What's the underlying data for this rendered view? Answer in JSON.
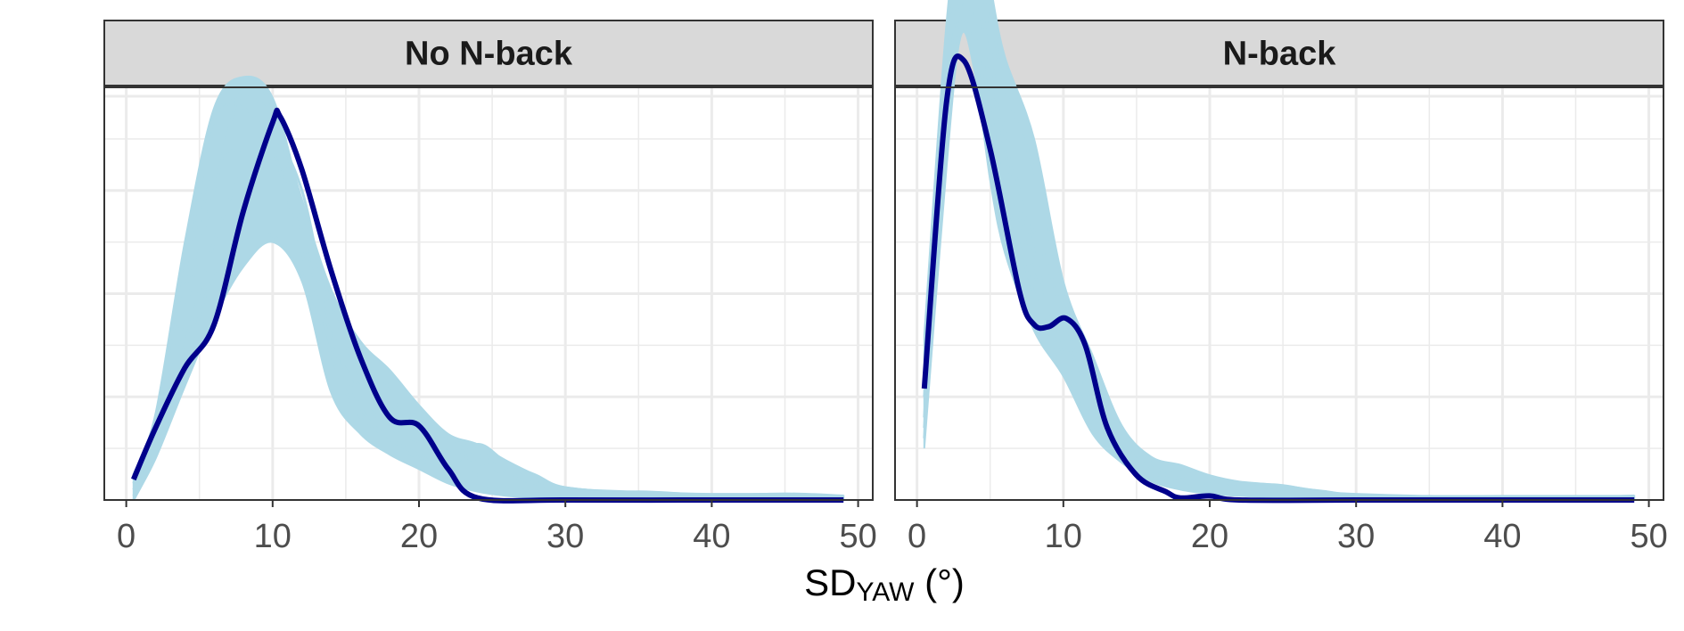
{
  "chart_data": {
    "type": "line",
    "subtype": "density-overlay",
    "xlabel_main": "SD",
    "xlabel_sub": "YAW",
    "xlabel_unit": " (°)",
    "xlim": [
      -1.5,
      51
    ],
    "ylim": [
      0,
      0.2
    ],
    "xticks": [
      0,
      10,
      20,
      30,
      40,
      50
    ],
    "y_axis_labels_shown": false,
    "grid": true,
    "colors": {
      "replicates": "#add8e6",
      "observed": "#00008b",
      "strip_fill": "#d9d9d9",
      "grid": "#ebebeb"
    },
    "panels": [
      {
        "title": "No N-back",
        "observed": {
          "name": "",
          "x": [
            0.5,
            2,
            4,
            6,
            8,
            10,
            10.5,
            12,
            14,
            16,
            18,
            20,
            22,
            24,
            30,
            40,
            49
          ],
          "y": [
            0.01,
            0.035,
            0.064,
            0.085,
            0.14,
            0.183,
            0.186,
            0.16,
            0.111,
            0.069,
            0.04,
            0.036,
            0.015,
            0.001,
            0.0,
            0.0,
            0.0
          ]
        },
        "replicates": {
          "name": "",
          "x": [
            0.5,
            2,
            4,
            6,
            8,
            10,
            12,
            14,
            16,
            18,
            20,
            22,
            24,
            26,
            28,
            30,
            35,
            40,
            45,
            49
          ],
          "upper": [
            0.012,
            0.042,
            0.125,
            0.19,
            0.205,
            0.195,
            0.145,
            0.102,
            0.077,
            0.063,
            0.046,
            0.032,
            0.027,
            0.019,
            0.012,
            0.006,
            0.004,
            0.003,
            0.003,
            0.002
          ],
          "lower": [
            0.0,
            0.02,
            0.055,
            0.088,
            0.113,
            0.125,
            0.106,
            0.052,
            0.032,
            0.022,
            0.015,
            0.008,
            0.004,
            0.002,
            0.001,
            0.0,
            0.0,
            0.0,
            0.0,
            0.0
          ],
          "lines": [
            [
              0.012,
              0.04,
              0.11,
              0.18,
              0.195,
              0.185,
              0.145,
              0.095,
              0.06,
              0.045,
              0.035,
              0.025,
              0.018,
              0.012,
              0.008,
              0.005,
              0.002,
              0.001,
              0.001,
              0.0
            ],
            [
              0.0,
              0.022,
              0.065,
              0.11,
              0.125,
              0.128,
              0.11,
              0.075,
              0.055,
              0.048,
              0.04,
              0.03,
              0.024,
              0.015,
              0.01,
              0.006,
              0.003,
              0.002,
              0.002,
              0.001
            ],
            [
              0.005,
              0.03,
              0.09,
              0.15,
              0.2,
              0.19,
              0.13,
              0.08,
              0.05,
              0.035,
              0.028,
              0.02,
              0.012,
              0.006,
              0.004,
              0.003,
              0.001,
              0.0,
              0.0,
              0.0
            ],
            [
              0.01,
              0.038,
              0.1,
              0.16,
              0.17,
              0.165,
              0.14,
              0.1,
              0.07,
              0.055,
              0.045,
              0.03,
              0.02,
              0.012,
              0.008,
              0.004,
              0.002,
              0.002,
              0.003,
              0.002
            ],
            [
              0.002,
              0.025,
              0.075,
              0.125,
              0.16,
              0.175,
              0.15,
              0.085,
              0.045,
              0.03,
              0.022,
              0.015,
              0.027,
              0.018,
              0.012,
              0.006,
              0.003,
              0.001,
              0.0,
              0.0
            ],
            [
              0.008,
              0.035,
              0.12,
              0.185,
              0.19,
              0.17,
              0.12,
              0.07,
              0.04,
              0.028,
              0.02,
              0.012,
              0.008,
              0.005,
              0.003,
              0.002,
              0.004,
              0.002,
              0.001,
              0.0
            ]
          ]
        }
      },
      {
        "title": "N-back",
        "observed": {
          "name": "",
          "x": [
            0.5,
            2,
            3.2,
            5,
            7,
            8,
            9,
            10.2,
            11.5,
            13,
            15,
            17,
            18,
            20,
            22,
            30,
            40,
            49
          ],
          "y": [
            0.054,
            0.192,
            0.213,
            0.17,
            0.101,
            0.085,
            0.084,
            0.088,
            0.075,
            0.035,
            0.012,
            0.004,
            0.001,
            0.002,
            0.0,
            0.0,
            0.0,
            0.0
          ]
        },
        "replicates": {
          "name": "",
          "x": [
            0.5,
            2,
            3,
            4,
            5,
            6,
            8,
            10,
            12,
            14,
            16,
            18,
            20,
            22,
            25,
            28,
            30,
            35,
            40,
            45,
            49
          ],
          "upper": [
            0.08,
            0.23,
            0.28,
            0.29,
            0.25,
            0.215,
            0.175,
            0.106,
            0.07,
            0.036,
            0.021,
            0.017,
            0.012,
            0.009,
            0.007,
            0.004,
            0.003,
            0.002,
            0.002,
            0.002,
            0.002
          ],
          "lower": [
            0.025,
            0.16,
            0.225,
            0.205,
            0.155,
            0.12,
            0.082,
            0.06,
            0.032,
            0.018,
            0.009,
            0.005,
            0.003,
            0.002,
            0.001,
            0.0,
            0.0,
            0.0,
            0.0,
            0.0,
            0.0
          ],
          "lines": [
            [
              0.04,
              0.2,
              0.26,
              0.27,
              0.22,
              0.17,
              0.11,
              0.08,
              0.05,
              0.028,
              0.014,
              0.009,
              0.007,
              0.005,
              0.004,
              0.003,
              0.002,
              0.001,
              0.001,
              0.0,
              0.0
            ],
            [
              0.03,
              0.17,
              0.23,
              0.215,
              0.17,
              0.14,
              0.13,
              0.09,
              0.045,
              0.022,
              0.012,
              0.015,
              0.01,
              0.006,
              0.004,
              0.002,
              0.001,
              0.0,
              0.0,
              0.001,
              0.002
            ],
            [
              0.06,
              0.22,
              0.275,
              0.285,
              0.24,
              0.2,
              0.16,
              0.1,
              0.06,
              0.03,
              0.018,
              0.01,
              0.008,
              0.006,
              0.006,
              0.004,
              0.002,
              0.001,
              0.0,
              0.0,
              0.0
            ],
            [
              0.05,
              0.19,
              0.245,
              0.25,
              0.2,
              0.18,
              0.12,
              0.07,
              0.04,
              0.025,
              0.016,
              0.012,
              0.009,
              0.008,
              0.007,
              0.003,
              0.002,
              0.001,
              0.001,
              0.0,
              0.0
            ],
            [
              0.035,
              0.18,
              0.24,
              0.23,
              0.19,
              0.15,
              0.1,
              0.065,
              0.035,
              0.02,
              0.01,
              0.006,
              0.004,
              0.003,
              0.005,
              0.003,
              0.001,
              0.0,
              0.0,
              0.0,
              0.0
            ]
          ]
        }
      }
    ]
  }
}
